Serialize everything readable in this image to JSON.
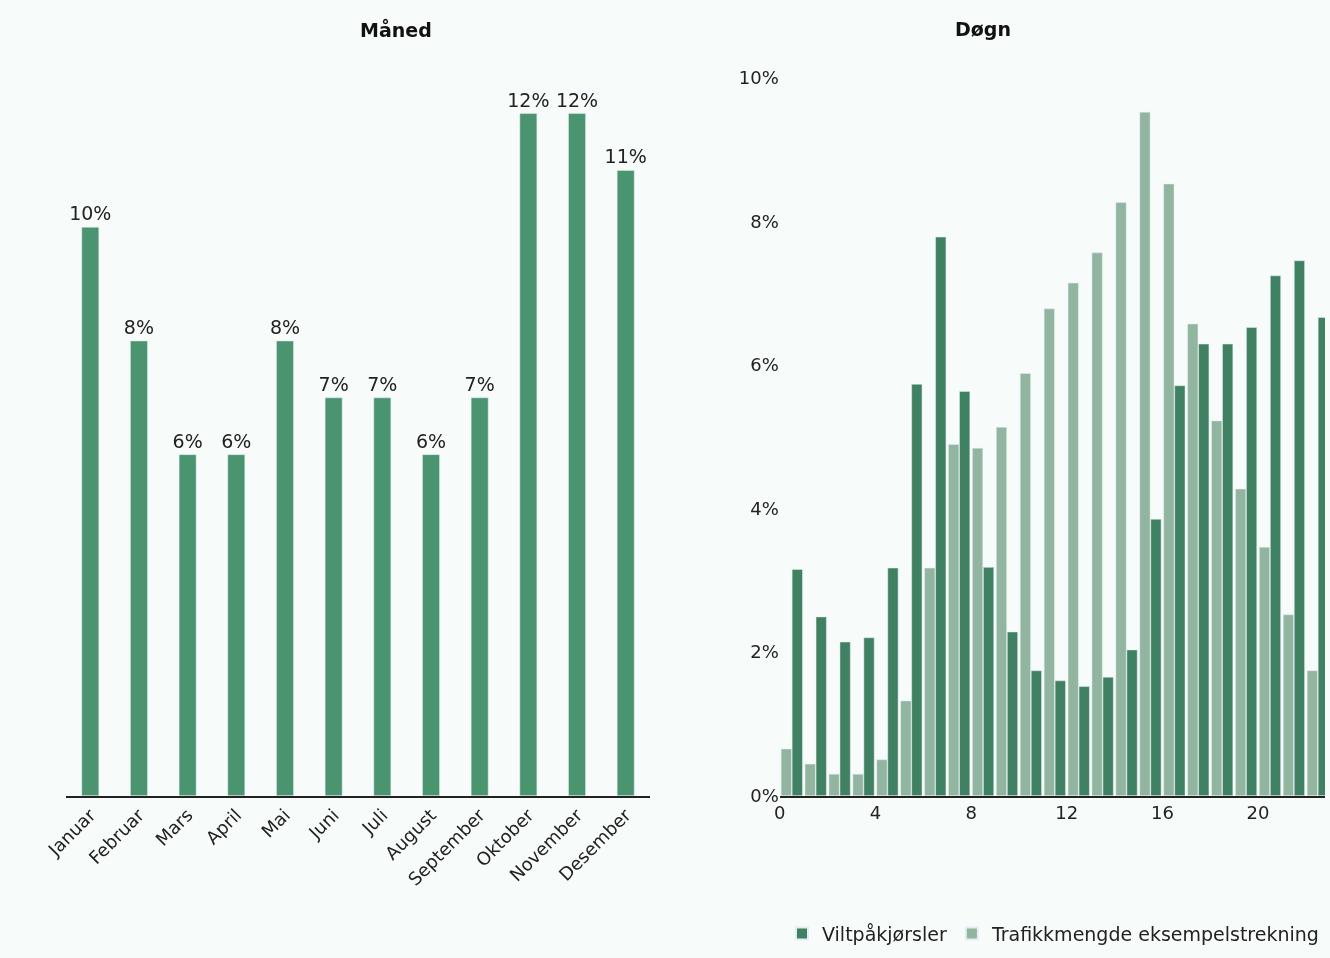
{
  "chart_data": [
    {
      "type": "bar",
      "title": "Måned",
      "categories": [
        "Januar",
        "Februar",
        "Mars",
        "April",
        "Mai",
        "Juni",
        "Juli",
        "August",
        "September",
        "Oktober",
        "November",
        "Desember"
      ],
      "values": [
        10,
        8,
        6,
        6,
        8,
        7,
        7,
        6,
        7,
        12,
        12,
        11
      ],
      "value_labels": [
        "10%",
        "8%",
        "6%",
        "6%",
        "8%",
        "7%",
        "7%",
        "6%",
        "7%",
        "12%",
        "12%",
        "11%"
      ],
      "color": "#4a9470",
      "grid": false,
      "legend": false
    },
    {
      "type": "bar",
      "title": "Døgn",
      "x": [
        0.5,
        1.5,
        2.5,
        3.5,
        4.5,
        5.5,
        6.5,
        7.5,
        8.5,
        9.5,
        10.5,
        11.5,
        12.5,
        13.5,
        14.5,
        15.5,
        16.5,
        17.5,
        18.5,
        19.5,
        20.5,
        21.5,
        22.5
      ],
      "series": [
        {
          "name": "Viltpåkjørsler",
          "color": "#3f8162",
          "values": [
            3.15,
            2.49,
            2.14,
            2.2,
            3.17,
            5.73,
            7.78,
            5.63,
            3.18,
            2.28,
            1.74,
            1.6,
            1.52,
            1.65,
            2.03,
            3.85,
            5.71,
            6.29,
            6.29,
            6.52,
            7.24,
            7.45,
            6.66
          ]
        },
        {
          "name": "Trafikkmengde eksempelstrekning",
          "color": "#92b5a0",
          "values": [
            0.65,
            0.44,
            0.3,
            0.3,
            0.5,
            1.32,
            3.17,
            4.89,
            4.84,
            5.13,
            5.88,
            6.78,
            7.14,
            7.56,
            8.26,
            9.52,
            8.52,
            6.57,
            5.22,
            4.27,
            3.46,
            2.52,
            1.74
          ]
        }
      ],
      "xlim": [
        0,
        22.8
      ],
      "xticks": [
        0,
        4,
        8,
        12,
        16,
        20
      ],
      "ylim": [
        0,
        10
      ],
      "yticks": [
        {
          "value": 0,
          "label": "0%"
        },
        {
          "value": 2,
          "label": "2%"
        },
        {
          "value": 4,
          "label": "4%"
        },
        {
          "value": 6,
          "label": "6%"
        },
        {
          "value": 8,
          "label": "8%"
        },
        {
          "value": 10,
          "label": "10%"
        }
      ],
      "grid": false,
      "legend": "bottom"
    }
  ]
}
